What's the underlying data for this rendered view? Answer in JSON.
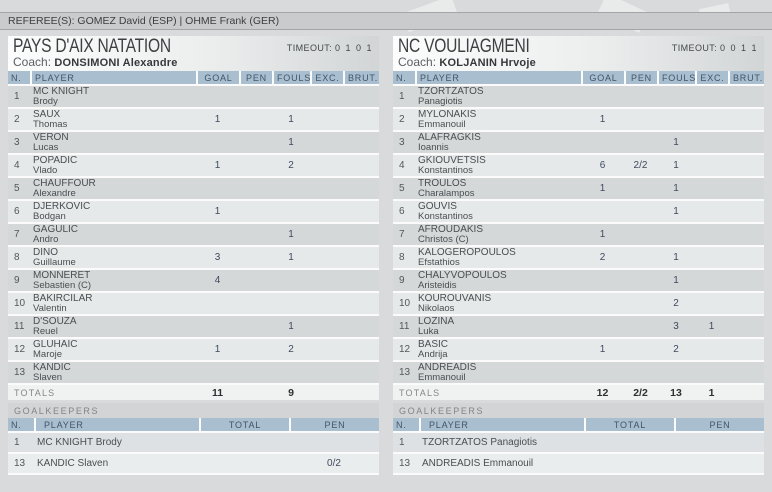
{
  "referees": {
    "text": "REFEREE(S): GOMEZ David (ESP) | OHME Frank (GER)"
  },
  "columns": {
    "main": [
      "N.",
      "PLAYER",
      "GOAL",
      "PEN",
      "FOULS",
      "EXC.",
      "BRUT."
    ],
    "gk": [
      "N.",
      "PLAYER",
      "TOTAL",
      "PEN"
    ]
  },
  "teams": [
    {
      "name": "PAYS D'AIX NATATION",
      "coach_label": "Coach:",
      "coach": "DONSIMONI Alexandre",
      "timeout_label": "TIMEOUT:",
      "timeout_value": "0 1 0 1",
      "players": [
        {
          "n": "1",
          "last": "MC KNIGHT",
          "first": "Brody",
          "goal": "",
          "pen": "",
          "fouls": "",
          "exc": "",
          "brut": ""
        },
        {
          "n": "2",
          "last": "SAUX",
          "first": "Thomas",
          "goal": "1",
          "pen": "",
          "fouls": "1",
          "exc": "",
          "brut": ""
        },
        {
          "n": "3",
          "last": "VERON",
          "first": "Lucas",
          "goal": "",
          "pen": "",
          "fouls": "1",
          "exc": "",
          "brut": ""
        },
        {
          "n": "4",
          "last": "POPADIC",
          "first": "Vlado",
          "goal": "1",
          "pen": "",
          "fouls": "2",
          "exc": "",
          "brut": ""
        },
        {
          "n": "5",
          "last": "CHAUFFOUR",
          "first": "Alexandre",
          "goal": "",
          "pen": "",
          "fouls": "",
          "exc": "",
          "brut": ""
        },
        {
          "n": "6",
          "last": "DJERKOVIC",
          "first": "Bodgan",
          "goal": "1",
          "pen": "",
          "fouls": "",
          "exc": "",
          "brut": ""
        },
        {
          "n": "7",
          "last": "GAGULIC",
          "first": "Andro",
          "goal": "",
          "pen": "",
          "fouls": "1",
          "exc": "",
          "brut": ""
        },
        {
          "n": "8",
          "last": "DINO",
          "first": "Guillaume",
          "goal": "3",
          "pen": "",
          "fouls": "1",
          "exc": "",
          "brut": ""
        },
        {
          "n": "9",
          "last": "MONNERET",
          "first": "Sebastien (C)",
          "goal": "4",
          "pen": "",
          "fouls": "",
          "exc": "",
          "brut": ""
        },
        {
          "n": "10",
          "last": "BAKIRCILAR",
          "first": "Valentin",
          "goal": "",
          "pen": "",
          "fouls": "",
          "exc": "",
          "brut": ""
        },
        {
          "n": "11",
          "last": "D'SOUZA",
          "first": "Reuel",
          "goal": "",
          "pen": "",
          "fouls": "1",
          "exc": "",
          "brut": ""
        },
        {
          "n": "12",
          "last": "GLUHAIC",
          "first": "Maroje",
          "goal": "1",
          "pen": "",
          "fouls": "2",
          "exc": "",
          "brut": ""
        },
        {
          "n": "13",
          "last": "KANDIC",
          "first": "Slaven",
          "goal": "",
          "pen": "",
          "fouls": "",
          "exc": "",
          "brut": ""
        }
      ],
      "totals": {
        "label": "TOTALS",
        "goal": "11",
        "pen": "",
        "fouls": "9",
        "exc": "",
        "brut": ""
      },
      "goalkeepers_label": "GOALKEEPERS",
      "goalkeepers": [
        {
          "n": "1",
          "name": "MC KNIGHT Brody",
          "total": "",
          "pen": ""
        },
        {
          "n": "13",
          "name": "KANDIC Slaven",
          "total": "",
          "pen": "0/2"
        }
      ]
    },
    {
      "name": "NC VOULIAGMENI",
      "coach_label": "Coach:",
      "coach": "KOLJANIN Hrvoje",
      "timeout_label": "TIMEOUT:",
      "timeout_value": "0 0 1 1",
      "players": [
        {
          "n": "1",
          "last": "TZORTZATOS",
          "first": "Panagiotis",
          "goal": "",
          "pen": "",
          "fouls": "",
          "exc": "",
          "brut": ""
        },
        {
          "n": "2",
          "last": "MYLONAKIS",
          "first": "Emmanouil",
          "goal": "1",
          "pen": "",
          "fouls": "",
          "exc": "",
          "brut": ""
        },
        {
          "n": "3",
          "last": "ALAFRAGKIS",
          "first": "Ioannis",
          "goal": "",
          "pen": "",
          "fouls": "1",
          "exc": "",
          "brut": ""
        },
        {
          "n": "4",
          "last": "GKIOUVETSIS",
          "first": "Konstantinos",
          "goal": "6",
          "pen": "2/2",
          "fouls": "1",
          "exc": "",
          "brut": ""
        },
        {
          "n": "5",
          "last": "TROULOS",
          "first": "Charalampos",
          "goal": "1",
          "pen": "",
          "fouls": "1",
          "exc": "",
          "brut": ""
        },
        {
          "n": "6",
          "last": "GOUVIS",
          "first": "Konstantinos",
          "goal": "",
          "pen": "",
          "fouls": "1",
          "exc": "",
          "brut": ""
        },
        {
          "n": "7",
          "last": "AFROUDAKIS",
          "first": "Christos (C)",
          "goal": "1",
          "pen": "",
          "fouls": "",
          "exc": "",
          "brut": ""
        },
        {
          "n": "8",
          "last": "KALOGEROPOULOS",
          "first": "Efstathios",
          "goal": "2",
          "pen": "",
          "fouls": "1",
          "exc": "",
          "brut": ""
        },
        {
          "n": "9",
          "last": "CHALYVOPOULOS",
          "first": "Aristeidis",
          "goal": "",
          "pen": "",
          "fouls": "1",
          "exc": "",
          "brut": ""
        },
        {
          "n": "10",
          "last": "KOUROUVANIS",
          "first": "Nikolaos",
          "goal": "",
          "pen": "",
          "fouls": "2",
          "exc": "",
          "brut": ""
        },
        {
          "n": "11",
          "last": "LOZINA",
          "first": "Luka",
          "goal": "",
          "pen": "",
          "fouls": "3",
          "exc": "1",
          "brut": ""
        },
        {
          "n": "12",
          "last": "BASIC",
          "first": "Andrija",
          "goal": "1",
          "pen": "",
          "fouls": "2",
          "exc": "",
          "brut": ""
        },
        {
          "n": "13",
          "last": "ANDREADIS",
          "first": "Emmanouil",
          "goal": "",
          "pen": "",
          "fouls": "",
          "exc": "",
          "brut": ""
        }
      ],
      "totals": {
        "label": "TOTALS",
        "goal": "12",
        "pen": "2/2",
        "fouls": "13",
        "exc": "1",
        "brut": ""
      },
      "goalkeepers_label": "GOALKEEPERS",
      "goalkeepers": [
        {
          "n": "1",
          "name": "TZORTZATOS Panagiotis",
          "total": "",
          "pen": ""
        },
        {
          "n": "13",
          "name": "ANDREADIS Emmanouil",
          "total": "",
          "pen": ""
        }
      ]
    }
  ]
}
